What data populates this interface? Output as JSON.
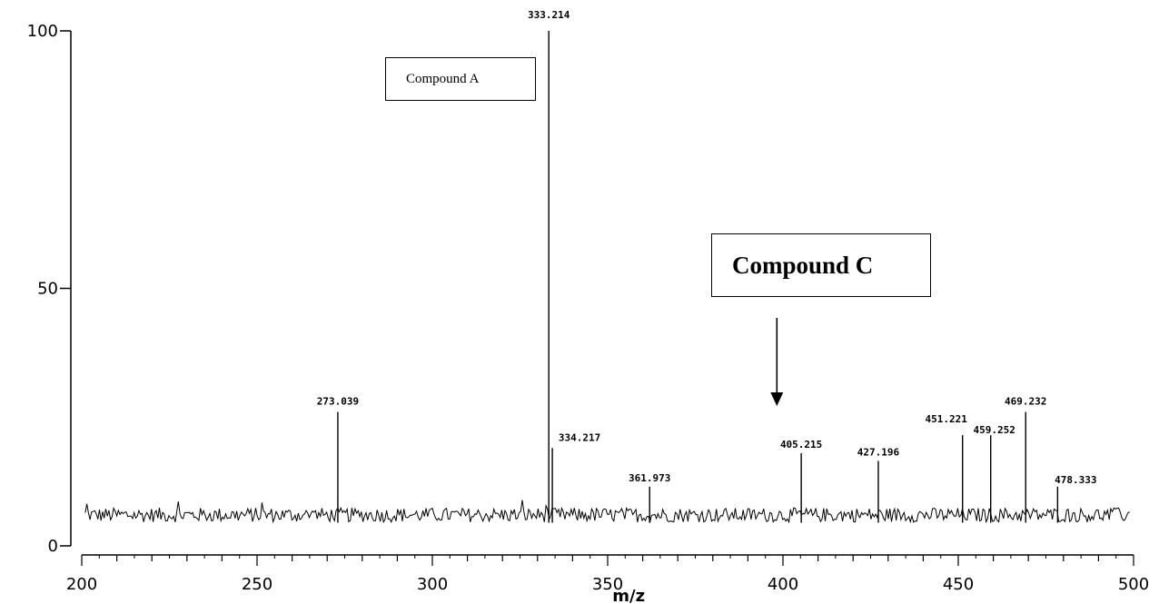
{
  "chart_data": {
    "type": "line",
    "title": "",
    "xlabel": "m/z",
    "ylabel": "",
    "xlim": [
      200,
      500
    ],
    "ylim": [
      0,
      100
    ],
    "x_ticks": [
      200,
      250,
      300,
      350,
      400,
      450,
      500
    ],
    "y_ticks": [
      0,
      50,
      100
    ],
    "baseline_level": 6,
    "peaks": [
      {
        "x": 273.039,
        "y": 26,
        "label": "273.039"
      },
      {
        "x": 333.214,
        "y": 100,
        "label": "333.214"
      },
      {
        "x": 334.217,
        "y": 19,
        "label": "334.217"
      },
      {
        "x": 361.973,
        "y": 11.5,
        "label": "361.973"
      },
      {
        "x": 405.215,
        "y": 18,
        "label": "405.215"
      },
      {
        "x": 427.196,
        "y": 16.5,
        "label": "427.196"
      },
      {
        "x": 451.221,
        "y": 21.5,
        "label": "451.221"
      },
      {
        "x": 459.252,
        "y": 21.5,
        "label": "459.252"
      },
      {
        "x": 469.232,
        "y": 26,
        "label": "469.232"
      },
      {
        "x": 478.333,
        "y": 11.5,
        "label": "478.333"
      }
    ],
    "annotations": [
      {
        "text": "Compound A"
      },
      {
        "text": "Compound C",
        "arrow_to_x": 405
      }
    ]
  }
}
